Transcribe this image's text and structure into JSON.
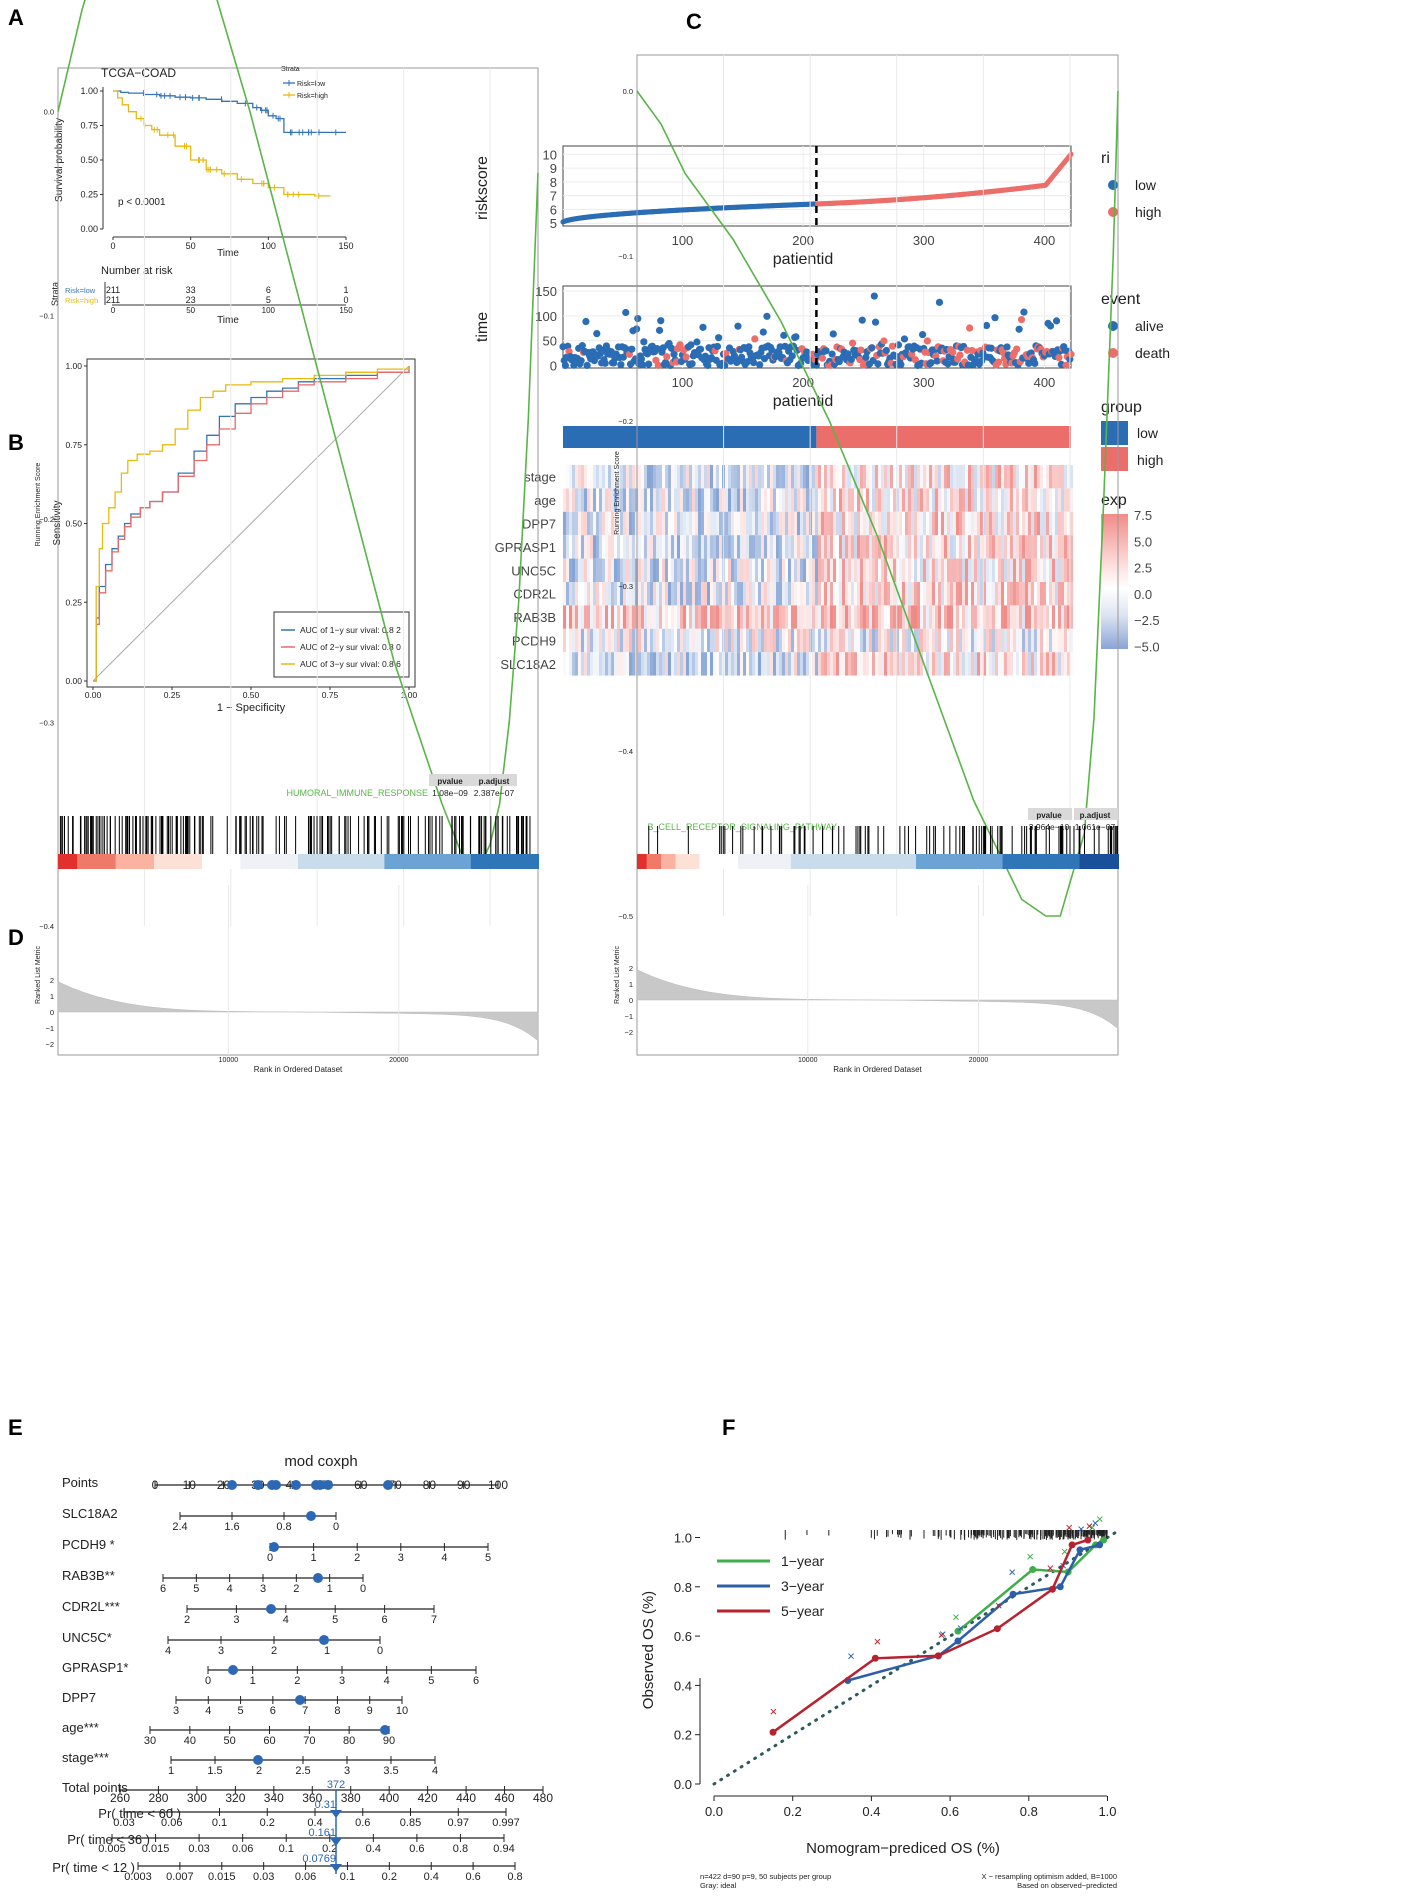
{
  "colors": {
    "blue": "#3674b8",
    "yellow": "#e8b90e",
    "red": "#e8696a",
    "green": "#58b547",
    "ri_blue": "#2a6db5",
    "ri_red": "#ec6e6a",
    "dark_red": "#b5232f",
    "nomo_blue": "#2c5fa8",
    "nomo_green": "#3fae49"
  },
  "panel_labels": {
    "a": "A",
    "b": "B",
    "c": "C",
    "d": "D",
    "e": "E",
    "f": "F"
  },
  "chart_data": [
    {
      "id": "A",
      "type": "line",
      "subtype": "kaplan-meier",
      "title": "TCGA−COAD",
      "xlabel": "Time",
      "ylabel": "Survival probability",
      "x_ticks": [
        0,
        50,
        100,
        150
      ],
      "y_ticks": [
        "0.00",
        "0.25",
        "0.50",
        "0.75",
        "1.00"
      ],
      "xlim": [
        0,
        150
      ],
      "ylim": [
        0,
        1
      ],
      "legend_title": "Strata",
      "p_value": "p < 0.0001",
      "series": [
        {
          "name": "Risk=low",
          "color": "#3674b8",
          "x": [
            0,
            5,
            10,
            20,
            30,
            40,
            50,
            60,
            70,
            80,
            90,
            95,
            100,
            105,
            110,
            120,
            130,
            140,
            150
          ],
          "y": [
            1,
            0.99,
            0.985,
            0.975,
            0.965,
            0.955,
            0.95,
            0.94,
            0.925,
            0.91,
            0.88,
            0.86,
            0.82,
            0.8,
            0.7,
            0.7,
            0.7,
            0.7,
            0.7
          ]
        },
        {
          "name": "Risk=high",
          "color": "#e8b90e",
          "x": [
            0,
            3,
            6,
            10,
            15,
            20,
            25,
            30,
            40,
            50,
            60,
            70,
            80,
            90,
            100,
            110,
            120,
            130,
            140
          ],
          "y": [
            1,
            0.95,
            0.9,
            0.85,
            0.8,
            0.75,
            0.72,
            0.68,
            0.6,
            0.5,
            0.43,
            0.4,
            0.36,
            0.33,
            0.3,
            0.25,
            0.25,
            0.24,
            0.24
          ]
        }
      ],
      "risk_table": {
        "title": "Number at risk",
        "ylabel": "Strata",
        "x_ticks": [
          0,
          50,
          100,
          150
        ],
        "xlabel": "Time",
        "rows": [
          {
            "name": "Risk=low",
            "values": [
              "211",
              "33",
              "6",
              "1"
            ]
          },
          {
            "name": "Risk=high",
            "values": [
              "211",
              "23",
              "5",
              "0"
            ]
          }
        ]
      }
    },
    {
      "id": "B",
      "type": "line",
      "subtype": "roc",
      "xlabel": "1 − Specificity",
      "ylabel": "Sensitivity",
      "x_ticks": [
        "0.00",
        "0.25",
        "0.50",
        "0.75",
        "1.00"
      ],
      "y_ticks": [
        "0.00",
        "0.25",
        "0.50",
        "0.75",
        "1.00"
      ],
      "xlim": [
        0,
        1
      ],
      "ylim": [
        0,
        1
      ],
      "series": [
        {
          "name": "AUC of 1−y sur vival: 0.8 2",
          "color": "#3674b8",
          "x": [
            0,
            0.01,
            0.02,
            0.04,
            0.06,
            0.08,
            0.1,
            0.12,
            0.15,
            0.18,
            0.22,
            0.27,
            0.32,
            0.36,
            0.4,
            0.45,
            0.5,
            0.55,
            0.6,
            0.65,
            0.7,
            0.8,
            0.9,
            1
          ],
          "y": [
            0,
            0.2,
            0.3,
            0.37,
            0.42,
            0.46,
            0.5,
            0.53,
            0.55,
            0.57,
            0.6,
            0.66,
            0.73,
            0.78,
            0.84,
            0.88,
            0.9,
            0.92,
            0.93,
            0.95,
            0.96,
            0.97,
            0.98,
            1
          ]
        },
        {
          "name": "AUC of 2−y sur vival: 0.8 0",
          "color": "#e8696a",
          "x": [
            0,
            0.01,
            0.02,
            0.04,
            0.06,
            0.08,
            0.1,
            0.12,
            0.15,
            0.18,
            0.22,
            0.27,
            0.32,
            0.36,
            0.4,
            0.45,
            0.5,
            0.55,
            0.6,
            0.65,
            0.7,
            0.8,
            0.9,
            1
          ],
          "y": [
            0,
            0.18,
            0.28,
            0.35,
            0.41,
            0.45,
            0.49,
            0.52,
            0.55,
            0.57,
            0.6,
            0.65,
            0.7,
            0.75,
            0.8,
            0.85,
            0.88,
            0.9,
            0.92,
            0.94,
            0.95,
            0.96,
            0.98,
            1
          ]
        },
        {
          "name": "AUC of 3−y sur vival: 0.8 6",
          "color": "#e8b90e",
          "x": [
            0,
            0.01,
            0.02,
            0.03,
            0.05,
            0.07,
            0.09,
            0.11,
            0.14,
            0.18,
            0.22,
            0.26,
            0.3,
            0.34,
            0.38,
            0.42,
            0.5,
            0.6,
            0.7,
            0.8,
            0.9,
            1
          ],
          "y": [
            0,
            0.3,
            0.42,
            0.5,
            0.55,
            0.6,
            0.66,
            0.7,
            0.72,
            0.73,
            0.75,
            0.8,
            0.86,
            0.9,
            0.92,
            0.94,
            0.95,
            0.96,
            0.97,
            0.98,
            0.99,
            1
          ]
        }
      ]
    },
    {
      "id": "C",
      "type": "scatter",
      "subtype": "risk-plot",
      "riskscore": {
        "ylabel": "riskscore",
        "xlabel": "patientid",
        "y_ticks": [
          "5",
          "6",
          "7",
          "8",
          "9",
          "10"
        ],
        "x_ticks": [
          "100",
          "200",
          "300",
          "400"
        ],
        "n": 422,
        "cutoff": 211,
        "legend_title": "ri",
        "legend": [
          "low",
          "high"
        ]
      },
      "time": {
        "ylabel": "time",
        "xlabel": "patientid",
        "y_ticks": [
          "0",
          "50",
          "100",
          "150"
        ],
        "x_ticks": [
          "100",
          "200",
          "300",
          "400"
        ],
        "legend_title": "event",
        "legend": [
          "alive",
          "death"
        ]
      },
      "group": {
        "legend_title": "group",
        "legend": [
          "low",
          "high"
        ]
      },
      "heatmap": {
        "rows": [
          "stage",
          "age",
          "DPP7",
          "GPRASP1",
          "UNC5C",
          "CDR2L",
          "RAB3B",
          "PCDH9",
          "SLC18A2"
        ],
        "legend_title": "exp",
        "legend_ticks": [
          "7.5",
          "5.0",
          "2.5",
          "0.0",
          "−2.5",
          "−5.0"
        ]
      }
    },
    {
      "id": "D",
      "type": "line",
      "subtype": "gsea",
      "panels": [
        {
          "pathway": "HUMORAL_IMMUNE_RESPONSE",
          "pvalue": "1.08e−09",
          "padjust": "2.387e−07",
          "es_ticks": [
            "0.0",
            "−0.1",
            "−0.2",
            "−0.3",
            "−0.4"
          ],
          "es_ylim": [
            -0.4,
            0.0
          ],
          "es_x": [
            0,
            0.05,
            0.1,
            0.15,
            0.2,
            0.3,
            0.4,
            0.5,
            0.6,
            0.7,
            0.8,
            0.85,
            0.88,
            0.9,
            0.92,
            0.94,
            0.96,
            0.98,
            1
          ],
          "es_y": [
            0.0,
            0.05,
            0.09,
            0.11,
            0.12,
            0.08,
            0.0,
            -0.09,
            -0.18,
            -0.27,
            -0.34,
            -0.37,
            -0.37,
            -0.36,
            -0.34,
            -0.3,
            -0.24,
            -0.15,
            -0.03
          ]
        },
        {
          "pathway": "B_CELL_RECEPTOR_SIGNALING_PATHWAY",
          "pvalue": "3.964e−10",
          "padjust": "1.061e−07",
          "es_ticks": [
            "0.0",
            "−0.1",
            "−0.2",
            "−0.3",
            "−0.4",
            "−0.5"
          ],
          "es_ylim": [
            -0.5,
            0.0
          ],
          "es_x": [
            0,
            0.05,
            0.1,
            0.2,
            0.3,
            0.4,
            0.5,
            0.6,
            0.7,
            0.8,
            0.85,
            0.88,
            0.9,
            0.93,
            0.95,
            0.97,
            0.99,
            1
          ],
          "es_y": [
            0.0,
            -0.02,
            -0.05,
            -0.09,
            -0.14,
            -0.2,
            -0.27,
            -0.35,
            -0.43,
            -0.49,
            -0.5,
            -0.5,
            -0.48,
            -0.45,
            -0.38,
            -0.25,
            -0.1,
            0.0
          ]
        }
      ],
      "ylabel_es": "Running Enrichment Score",
      "ylabel_rank": "Ranked List Metric",
      "xlabel": "Rank in Ordered Dataset",
      "rank_x_ticks": [
        "10000",
        "20000"
      ],
      "rank_y_ticks": [
        "2",
        "1",
        "0",
        "−1",
        "−2"
      ],
      "table_headers": [
        "pvalue",
        "p.adjust"
      ]
    },
    {
      "id": "E",
      "type": "table",
      "subtype": "nomogram",
      "title": "mod coxph",
      "rows": [
        {
          "label": "Points",
          "ticks": [
            "0",
            "10",
            "20",
            "30",
            "40",
            "50",
            "60",
            "70",
            "80",
            "90",
            "100"
          ]
        },
        {
          "label": "SLC18A2",
          "ticks": [
            "2.4",
            "1.6",
            "0.8",
            "0"
          ]
        },
        {
          "label": "PCDH9 *",
          "ticks": [
            "0",
            "1",
            "2",
            "3",
            "4",
            "5"
          ]
        },
        {
          "label": "RAB3B**",
          "ticks": [
            "6",
            "5",
            "4",
            "3",
            "2",
            "1",
            "0"
          ]
        },
        {
          "label": "CDR2L***",
          "ticks": [
            "2",
            "3",
            "4",
            "5",
            "6",
            "7"
          ]
        },
        {
          "label": "UNC5C*",
          "ticks": [
            "4",
            "3",
            "2",
            "1",
            "0"
          ]
        },
        {
          "label": "GPRASP1*",
          "ticks": [
            "0",
            "1",
            "2",
            "3",
            "4",
            "5",
            "6"
          ]
        },
        {
          "label": "DPP7",
          "ticks": [
            "3",
            "4",
            "5",
            "6",
            "7",
            "8",
            "9",
            "10"
          ]
        },
        {
          "label": "age***",
          "ticks": [
            "30",
            "40",
            "50",
            "60",
            "70",
            "80",
            "90"
          ]
        },
        {
          "label": "stage***",
          "ticks": [
            "1",
            "1.5",
            "2",
            "2.5",
            "3",
            "3.5",
            "4"
          ]
        },
        {
          "label": "Total points",
          "ticks": [
            "260",
            "280",
            "300",
            "320",
            "340",
            "360",
            "380",
            "400",
            "420",
            "440",
            "460",
            "480"
          ]
        },
        {
          "label": "Pr( time < 60 )",
          "ticks": [
            "0.03",
            "0.06",
            "0.1",
            "0.2",
            "0.4",
            "0.6",
            "0.85",
            "0.97",
            "0.997"
          ]
        },
        {
          "label": "Pr( time < 36 )",
          "ticks": [
            "0.005",
            "0.015",
            "0.03",
            "0.06",
            "0.1",
            "0.2",
            "0.4",
            "0.6",
            "0.8",
            "0.94"
          ]
        },
        {
          "label": "Pr( time < 12 )",
          "ticks": [
            "0.003",
            "0.007",
            "0.015",
            "0.03",
            "0.06",
            "0.1",
            "0.2",
            "0.4",
            "0.6",
            "0.8"
          ]
        }
      ],
      "total_value": "372",
      "prob_values": [
        "0.31",
        "0.161",
        "0.0769"
      ]
    },
    {
      "id": "F",
      "type": "line",
      "subtype": "calibration",
      "xlabel": "Nomogram−prediced OS (%)",
      "ylabel": "Observed OS (%)",
      "x_ticks": [
        "0.0",
        "0.2",
        "0.4",
        "0.6",
        "0.8",
        "1.0"
      ],
      "y_ticks": [
        "0.0",
        "0.2",
        "0.4",
        "0.6",
        "0.8",
        "1.0"
      ],
      "xlim": [
        0,
        1
      ],
      "ylim": [
        0,
        1
      ],
      "series": [
        {
          "name": "1−year",
          "color": "#3fae49",
          "x": [
            0.62,
            0.81,
            0.9,
            0.97,
            0.99
          ],
          "y": [
            0.62,
            0.87,
            0.86,
            0.97,
            0.99
          ]
        },
        {
          "name": "3−year",
          "color": "#2c5fa8",
          "x": [
            0.34,
            0.57,
            0.62,
            0.76,
            0.88,
            0.93,
            0.98
          ],
          "y": [
            0.42,
            0.52,
            0.58,
            0.77,
            0.8,
            0.95,
            0.97
          ]
        },
        {
          "name": "5−year",
          "color": "#b5232f",
          "x": [
            0.15,
            0.41,
            0.57,
            0.72,
            0.86,
            0.91,
            0.95
          ],
          "y": [
            0.21,
            0.51,
            0.52,
            0.63,
            0.79,
            0.97,
            0.99
          ]
        }
      ],
      "footnote_left": [
        "n=422 d=90 p=9, 50 subjects per group",
        "Gray: ideal"
      ],
      "footnote_right": [
        "X − resampling optimism added, B=1000",
        "Based on observed−predicted"
      ]
    }
  ]
}
